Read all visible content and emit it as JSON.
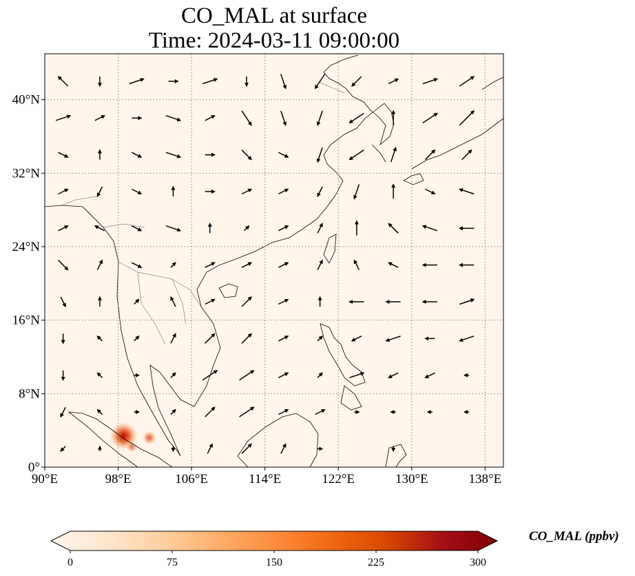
{
  "title": {
    "line1": "CO_MAL at surface",
    "line2": "Time: 2024-03-11 09:00:00"
  },
  "map": {
    "projection": "PlateCarree",
    "lon_range": [
      90,
      140
    ],
    "lat_range": [
      0,
      45
    ],
    "gridlines": "dotted",
    "lon_ticks": [
      {
        "value": 90,
        "label": "90°E"
      },
      {
        "value": 98,
        "label": "98°E"
      },
      {
        "value": 106,
        "label": "106°E"
      },
      {
        "value": 114,
        "label": "114°E"
      },
      {
        "value": 122,
        "label": "122°E"
      },
      {
        "value": 130,
        "label": "130°E"
      },
      {
        "value": 138,
        "label": "138°E"
      }
    ],
    "lat_ticks": [
      {
        "value": 0,
        "label": "0°"
      },
      {
        "value": 8,
        "label": "8°N"
      },
      {
        "value": 16,
        "label": "16°N"
      },
      {
        "value": 24,
        "label": "24°N"
      },
      {
        "value": 32,
        "label": "32°N"
      },
      {
        "value": 40,
        "label": "40°N"
      }
    ],
    "background_color": "#fff5eb",
    "coast_color": "#000000",
    "hotspots": [
      {
        "lon": 98.6,
        "lat": 3.4,
        "value": 230
      },
      {
        "lon": 101.4,
        "lat": 3.2,
        "value": 90
      },
      {
        "lon": 99.5,
        "lat": 2.2,
        "value": 60
      }
    ],
    "wind_vectors": [
      {
        "lon": 92,
        "lat": 42,
        "u": -2,
        "v": 2
      },
      {
        "lon": 96,
        "lat": 42,
        "u": 0,
        "v": -2
      },
      {
        "lon": 100,
        "lat": 42,
        "u": 3,
        "v": 1
      },
      {
        "lon": 104,
        "lat": 42,
        "u": 2,
        "v": 0
      },
      {
        "lon": 108,
        "lat": 42,
        "u": 3,
        "v": 1
      },
      {
        "lon": 112,
        "lat": 42,
        "u": 0,
        "v": -2
      },
      {
        "lon": 116,
        "lat": 42,
        "u": 1,
        "v": -3
      },
      {
        "lon": 120,
        "lat": 42,
        "u": -2,
        "v": -3
      },
      {
        "lon": 124,
        "lat": 42,
        "u": -2,
        "v": -2
      },
      {
        "lon": 128,
        "lat": 42,
        "u": 2,
        "v": 1
      },
      {
        "lon": 132,
        "lat": 42,
        "u": 3,
        "v": 1
      },
      {
        "lon": 136,
        "lat": 42,
        "u": 3,
        "v": 2
      },
      {
        "lon": 92,
        "lat": 38,
        "u": 3,
        "v": 1
      },
      {
        "lon": 96,
        "lat": 38,
        "u": 2,
        "v": 1
      },
      {
        "lon": 100,
        "lat": 38,
        "u": 2,
        "v": 0
      },
      {
        "lon": 104,
        "lat": 38,
        "u": 3,
        "v": -1
      },
      {
        "lon": 108,
        "lat": 38,
        "u": 2,
        "v": 1
      },
      {
        "lon": 112,
        "lat": 38,
        "u": 2,
        "v": -3
      },
      {
        "lon": 116,
        "lat": 38,
        "u": 1,
        "v": -3
      },
      {
        "lon": 120,
        "lat": 38,
        "u": -1,
        "v": -3
      },
      {
        "lon": 124,
        "lat": 38,
        "u": -3,
        "v": -2
      },
      {
        "lon": 128,
        "lat": 38,
        "u": 0,
        "v": 3
      },
      {
        "lon": 132,
        "lat": 38,
        "u": 3,
        "v": 2
      },
      {
        "lon": 136,
        "lat": 38,
        "u": 3,
        "v": 3
      },
      {
        "lon": 92,
        "lat": 34,
        "u": 2,
        "v": -1
      },
      {
        "lon": 96,
        "lat": 34,
        "u": 0,
        "v": 2
      },
      {
        "lon": 100,
        "lat": 34,
        "u": 2,
        "v": -1
      },
      {
        "lon": 104,
        "lat": 34,
        "u": 3,
        "v": -1
      },
      {
        "lon": 108,
        "lat": 34,
        "u": 2,
        "v": 0
      },
      {
        "lon": 112,
        "lat": 34,
        "u": 2,
        "v": -2
      },
      {
        "lon": 116,
        "lat": 34,
        "u": 2,
        "v": -1
      },
      {
        "lon": 120,
        "lat": 34,
        "u": -1,
        "v": -3
      },
      {
        "lon": 124,
        "lat": 34,
        "u": -3,
        "v": -2
      },
      {
        "lon": 128,
        "lat": 34,
        "u": 1,
        "v": 3
      },
      {
        "lon": 132,
        "lat": 34,
        "u": 2,
        "v": 2
      },
      {
        "lon": 136,
        "lat": 34,
        "u": 2,
        "v": 2
      },
      {
        "lon": 92,
        "lat": 30,
        "u": 2,
        "v": 1
      },
      {
        "lon": 96,
        "lat": 30,
        "u": -1,
        "v": -2
      },
      {
        "lon": 100,
        "lat": 30,
        "u": 2,
        "v": -1
      },
      {
        "lon": 104,
        "lat": 30,
        "u": 0,
        "v": 2
      },
      {
        "lon": 108,
        "lat": 30,
        "u": 2,
        "v": 0
      },
      {
        "lon": 112,
        "lat": 30,
        "u": 2,
        "v": 1
      },
      {
        "lon": 116,
        "lat": 30,
        "u": 2,
        "v": 1
      },
      {
        "lon": 120,
        "lat": 30,
        "u": -1,
        "v": -2
      },
      {
        "lon": 124,
        "lat": 30,
        "u": -1,
        "v": -3
      },
      {
        "lon": 128,
        "lat": 30,
        "u": 0,
        "v": 3
      },
      {
        "lon": 132,
        "lat": 30,
        "u": 2,
        "v": -1
      },
      {
        "lon": 136,
        "lat": 30,
        "u": -3,
        "v": 1
      },
      {
        "lon": 92,
        "lat": 26,
        "u": 2,
        "v": 1
      },
      {
        "lon": 96,
        "lat": 26,
        "u": -2,
        "v": 1
      },
      {
        "lon": 100,
        "lat": 26,
        "u": 2,
        "v": -1
      },
      {
        "lon": 104,
        "lat": 26,
        "u": 3,
        "v": -1
      },
      {
        "lon": 108,
        "lat": 26,
        "u": 0,
        "v": 2
      },
      {
        "lon": 112,
        "lat": 26,
        "u": 1,
        "v": 1
      },
      {
        "lon": 116,
        "lat": 26,
        "u": 2,
        "v": 1
      },
      {
        "lon": 120,
        "lat": 26,
        "u": 1,
        "v": 2
      },
      {
        "lon": 124,
        "lat": 26,
        "u": 0,
        "v": 3
      },
      {
        "lon": 128,
        "lat": 26,
        "u": -2,
        "v": 2
      },
      {
        "lon": 132,
        "lat": 26,
        "u": -3,
        "v": 1
      },
      {
        "lon": 136,
        "lat": 26,
        "u": -3,
        "v": 0
      },
      {
        "lon": 92,
        "lat": 22,
        "u": 2,
        "v": -2
      },
      {
        "lon": 96,
        "lat": 22,
        "u": 1,
        "v": 2
      },
      {
        "lon": 100,
        "lat": 22,
        "u": 2,
        "v": -1
      },
      {
        "lon": 104,
        "lat": 22,
        "u": 1,
        "v": 1
      },
      {
        "lon": 108,
        "lat": 22,
        "u": 2,
        "v": 1
      },
      {
        "lon": 112,
        "lat": 22,
        "u": 2,
        "v": 1
      },
      {
        "lon": 116,
        "lat": 22,
        "u": 2,
        "v": 1
      },
      {
        "lon": 120,
        "lat": 22,
        "u": 1,
        "v": 2
      },
      {
        "lon": 124,
        "lat": 22,
        "u": -1,
        "v": 2
      },
      {
        "lon": 128,
        "lat": 22,
        "u": -2,
        "v": 1
      },
      {
        "lon": 132,
        "lat": 22,
        "u": -3,
        "v": 0
      },
      {
        "lon": 136,
        "lat": 22,
        "u": -3,
        "v": 0
      },
      {
        "lon": 92,
        "lat": 18,
        "u": 1,
        "v": -2
      },
      {
        "lon": 96,
        "lat": 18,
        "u": 0,
        "v": 2
      },
      {
        "lon": 100,
        "lat": 18,
        "u": 1,
        "v": 1
      },
      {
        "lon": 104,
        "lat": 18,
        "u": -1,
        "v": 2
      },
      {
        "lon": 108,
        "lat": 18,
        "u": 2,
        "v": 1
      },
      {
        "lon": 112,
        "lat": 18,
        "u": 2,
        "v": 2
      },
      {
        "lon": 116,
        "lat": 18,
        "u": 2,
        "v": 1
      },
      {
        "lon": 120,
        "lat": 18,
        "u": 0,
        "v": 2
      },
      {
        "lon": 124,
        "lat": 18,
        "u": -3,
        "v": 0
      },
      {
        "lon": 128,
        "lat": 18,
        "u": -3,
        "v": 0
      },
      {
        "lon": 132,
        "lat": 18,
        "u": -3,
        "v": 0
      },
      {
        "lon": 136,
        "lat": 18,
        "u": 3,
        "v": 1
      },
      {
        "lon": 92,
        "lat": 14,
        "u": 0,
        "v": -2
      },
      {
        "lon": 96,
        "lat": 14,
        "u": -1,
        "v": 1
      },
      {
        "lon": 100,
        "lat": 14,
        "u": 1,
        "v": 1
      },
      {
        "lon": 104,
        "lat": 14,
        "u": 1,
        "v": 2
      },
      {
        "lon": 108,
        "lat": 14,
        "u": 2,
        "v": 2
      },
      {
        "lon": 112,
        "lat": 14,
        "u": 2,
        "v": 2
      },
      {
        "lon": 116,
        "lat": 14,
        "u": 2,
        "v": 1
      },
      {
        "lon": 120,
        "lat": 14,
        "u": 1,
        "v": 1
      },
      {
        "lon": 124,
        "lat": 14,
        "u": -2,
        "v": -1
      },
      {
        "lon": 128,
        "lat": 14,
        "u": -3,
        "v": -1
      },
      {
        "lon": 132,
        "lat": 14,
        "u": -2,
        "v": 0
      },
      {
        "lon": 136,
        "lat": 14,
        "u": -3,
        "v": -1
      },
      {
        "lon": 92,
        "lat": 10,
        "u": 0,
        "v": -2
      },
      {
        "lon": 96,
        "lat": 10,
        "u": -1,
        "v": 1
      },
      {
        "lon": 100,
        "lat": 10,
        "u": 1,
        "v": 0
      },
      {
        "lon": 104,
        "lat": 10,
        "u": 1,
        "v": 1
      },
      {
        "lon": 108,
        "lat": 10,
        "u": 3,
        "v": 2
      },
      {
        "lon": 112,
        "lat": 10,
        "u": 3,
        "v": 2
      },
      {
        "lon": 116,
        "lat": 10,
        "u": 2,
        "v": 1
      },
      {
        "lon": 120,
        "lat": 10,
        "u": 1,
        "v": 1
      },
      {
        "lon": 124,
        "lat": 10,
        "u": 3,
        "v": 1
      },
      {
        "lon": 128,
        "lat": 10,
        "u": -2,
        "v": -1
      },
      {
        "lon": 132,
        "lat": 10,
        "u": -2,
        "v": -1
      },
      {
        "lon": 136,
        "lat": 10,
        "u": -1,
        "v": 0
      },
      {
        "lon": 92,
        "lat": 6,
        "u": -1,
        "v": -2
      },
      {
        "lon": 96,
        "lat": 6,
        "u": -1,
        "v": 1
      },
      {
        "lon": 100,
        "lat": 6,
        "u": 1,
        "v": 0
      },
      {
        "lon": 104,
        "lat": 6,
        "u": 1,
        "v": 1
      },
      {
        "lon": 108,
        "lat": 6,
        "u": 2,
        "v": 2
      },
      {
        "lon": 112,
        "lat": 6,
        "u": 3,
        "v": 2
      },
      {
        "lon": 116,
        "lat": 6,
        "u": 2,
        "v": 1
      },
      {
        "lon": 120,
        "lat": 6,
        "u": 2,
        "v": 1
      },
      {
        "lon": 124,
        "lat": 6,
        "u": 1,
        "v": 0
      },
      {
        "lon": 128,
        "lat": 6,
        "u": -1,
        "v": 0
      },
      {
        "lon": 132,
        "lat": 6,
        "u": -1,
        "v": 0
      },
      {
        "lon": 136,
        "lat": 6,
        "u": -1,
        "v": 0
      },
      {
        "lon": 92,
        "lat": 2,
        "u": -1,
        "v": -1
      },
      {
        "lon": 96,
        "lat": 2,
        "u": 0,
        "v": 1
      },
      {
        "lon": 104,
        "lat": 2,
        "u": 0,
        "v": -1
      },
      {
        "lon": 108,
        "lat": 2,
        "u": 1,
        "v": 2
      },
      {
        "lon": 112,
        "lat": 2,
        "u": 2,
        "v": 2
      },
      {
        "lon": 116,
        "lat": 2,
        "u": 1,
        "v": 2
      },
      {
        "lon": 120,
        "lat": 2,
        "u": 1,
        "v": 0
      },
      {
        "lon": 128,
        "lat": 2,
        "u": 0,
        "v": -1
      }
    ]
  },
  "colorbar": {
    "label": "CO_MAL (ppbv)",
    "min": 0,
    "max": 300,
    "extend": "both",
    "ticks": [
      {
        "value": 0,
        "label": "0"
      },
      {
        "value": 75,
        "label": "75"
      },
      {
        "value": 150,
        "label": "150"
      },
      {
        "value": 225,
        "label": "225"
      },
      {
        "value": 300,
        "label": "300"
      }
    ],
    "colormap": [
      "#fff5eb",
      "#fee6ce",
      "#fdd0a2",
      "#fdae6b",
      "#fd8d3c",
      "#f16913",
      "#d94801",
      "#a50f15",
      "#7f0000"
    ]
  }
}
